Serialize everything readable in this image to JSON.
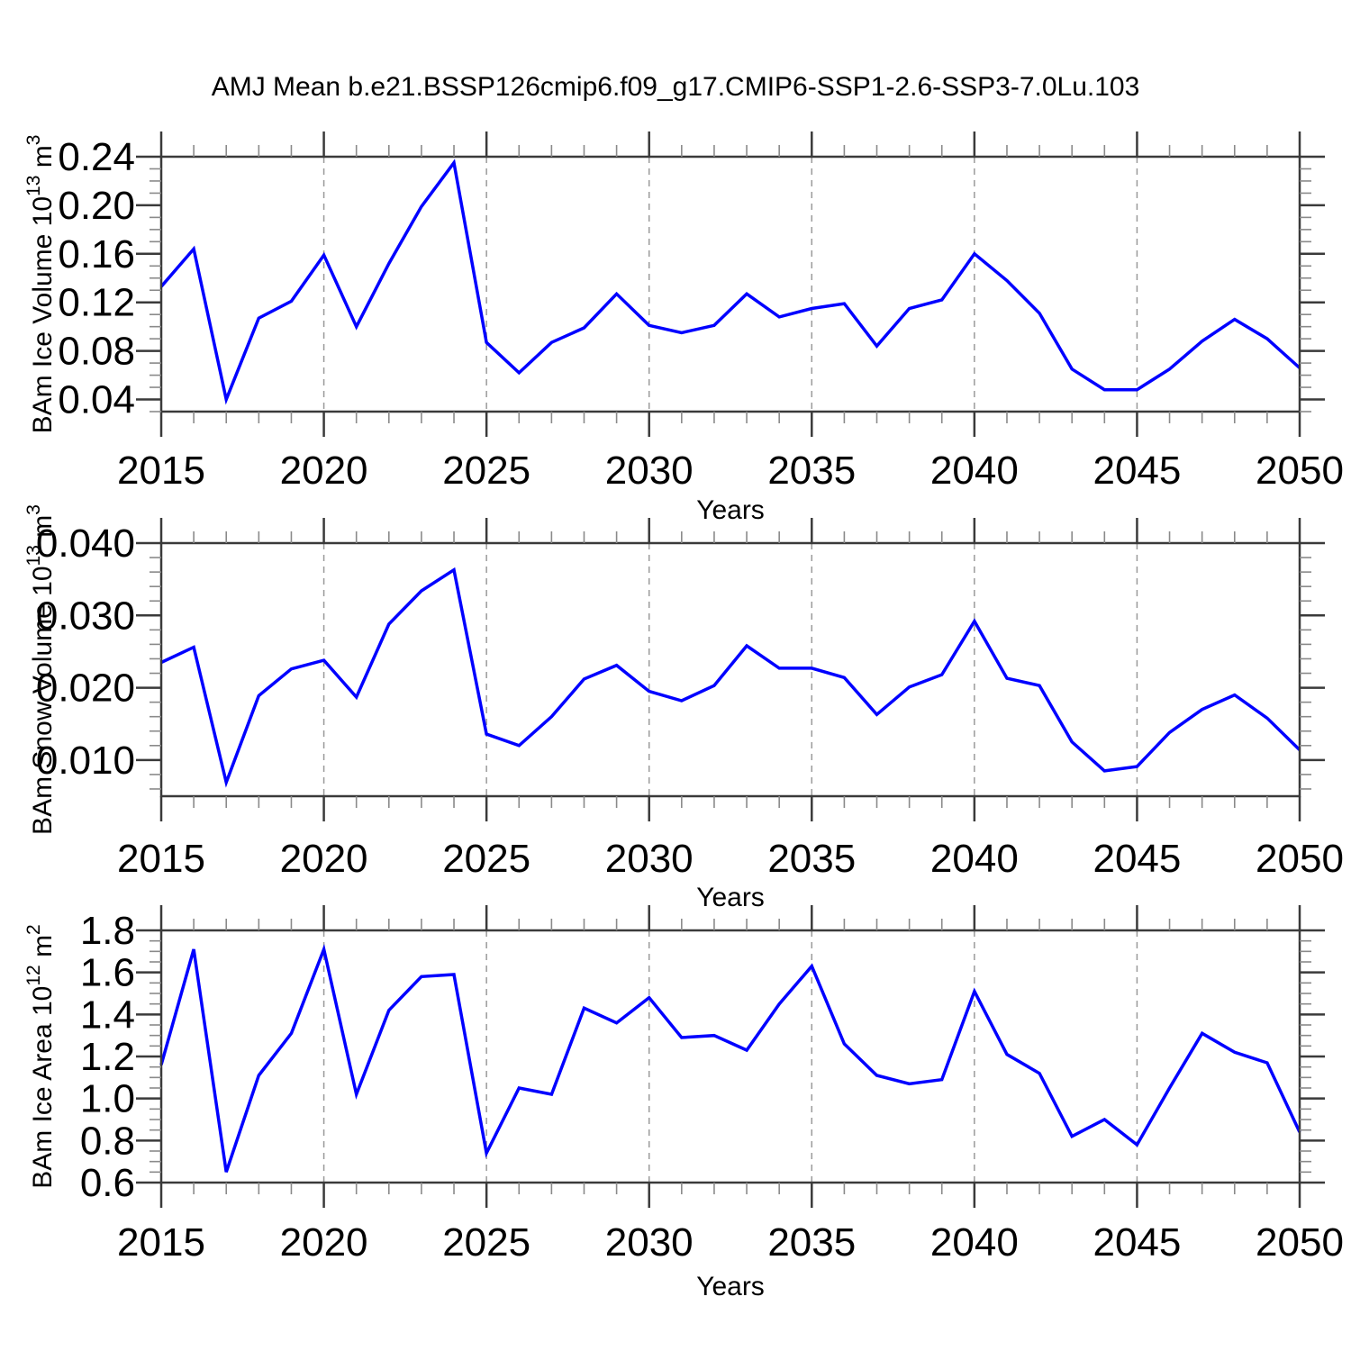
{
  "title": "AMJ Mean b.e21.BSSP126cmip6.f09_g17.CMIP6-SSP1-2.6-SSP3-7.0Lu.103",
  "xlabel": "Years",
  "style": {
    "line_color": "#0000ff",
    "grid_color": "#9a9a9a",
    "frame_color": "#3a3a3a",
    "minor_tick_color": "#8a8a8a",
    "text_color": "#000000",
    "background": "#ffffff"
  },
  "years": [
    2015,
    2016,
    2017,
    2018,
    2019,
    2020,
    2021,
    2022,
    2023,
    2024,
    2025,
    2026,
    2027,
    2028,
    2029,
    2030,
    2031,
    2032,
    2033,
    2034,
    2035,
    2036,
    2037,
    2038,
    2039,
    2040,
    2041,
    2042,
    2043,
    2044,
    2045,
    2046,
    2047,
    2048,
    2049,
    2050
  ],
  "x_tick_labels": [
    "2015",
    "2020",
    "2025",
    "2030",
    "2035",
    "2040",
    "2045",
    "2050"
  ],
  "chart_data": [
    {
      "type": "line",
      "id": "ice-volume",
      "ylabel": "BAm Ice Volume 10^13 m^3",
      "ylabel_parts": [
        [
          "t",
          "BAm Ice Volume 10"
        ],
        [
          "s",
          "13"
        ],
        [
          "t",
          " m"
        ],
        [
          "s",
          "3"
        ]
      ],
      "xlabel": "Years",
      "x_start": 2015,
      "x_end": 2050,
      "ylim": [
        0.03,
        0.24
      ],
      "yticks_major": [
        0.04,
        0.08,
        0.12,
        0.16,
        0.2,
        0.24
      ],
      "ytick_labels": [
        "0.04",
        "0.08",
        "0.12",
        "0.16",
        "0.20",
        "0.24"
      ],
      "y_minor_step": 0.01,
      "x_major_step": 5,
      "x_minor_step": 1,
      "grid_x": [
        2020,
        2025,
        2030,
        2035,
        2040,
        2045
      ],
      "values": [
        0.133,
        0.164,
        0.04,
        0.107,
        0.121,
        0.159,
        0.1,
        0.152,
        0.199,
        0.235,
        0.087,
        0.062,
        0.087,
        0.099,
        0.127,
        0.101,
        0.095,
        0.101,
        0.127,
        0.108,
        0.115,
        0.119,
        0.084,
        0.115,
        0.122,
        0.16,
        0.138,
        0.111,
        0.065,
        0.048,
        0.048,
        0.065,
        0.088,
        0.106,
        0.09,
        0.066
      ]
    },
    {
      "type": "line",
      "id": "snow-volume",
      "ylabel": "BAm Snow Volume 10^13 m^3",
      "ylabel_parts": [
        [
          "t",
          "BAm Snow Volume 10"
        ],
        [
          "s",
          "13"
        ],
        [
          "t",
          " m"
        ],
        [
          "s",
          "3"
        ]
      ],
      "xlabel": "Years",
      "x_start": 2015,
      "x_end": 2050,
      "ylim": [
        0.005,
        0.04
      ],
      "yticks_major": [
        0.01,
        0.02,
        0.03,
        0.04
      ],
      "ytick_labels": [
        "0.010",
        "0.020",
        "0.030",
        "0.040"
      ],
      "y_minor_step": 0.002,
      "x_major_step": 5,
      "x_minor_step": 1,
      "grid_x": [
        2020,
        2025,
        2030,
        2035,
        2040,
        2045
      ],
      "values": [
        0.0235,
        0.0256,
        0.0069,
        0.0189,
        0.0226,
        0.0238,
        0.0187,
        0.0288,
        0.0334,
        0.0363,
        0.0136,
        0.012,
        0.016,
        0.0212,
        0.0231,
        0.0195,
        0.0182,
        0.0203,
        0.0258,
        0.0227,
        0.0227,
        0.0214,
        0.0163,
        0.0201,
        0.0218,
        0.0292,
        0.0213,
        0.0203,
        0.0125,
        0.0085,
        0.0091,
        0.0138,
        0.017,
        0.019,
        0.0158,
        0.0114
      ]
    },
    {
      "type": "line",
      "id": "ice-area",
      "ylabel": "BAm Ice Area 10^12 m^2",
      "ylabel_parts": [
        [
          "t",
          "BAm Ice Area 10"
        ],
        [
          "s",
          "12"
        ],
        [
          "t",
          " m"
        ],
        [
          "s",
          "2"
        ]
      ],
      "xlabel": "Years",
      "x_start": 2015,
      "x_end": 2050,
      "ylim": [
        0.6,
        1.8
      ],
      "yticks_major": [
        0.6,
        0.8,
        1.0,
        1.2,
        1.4,
        1.6,
        1.8
      ],
      "ytick_labels": [
        "0.6",
        "0.8",
        "1.0",
        "1.2",
        "1.4",
        "1.6",
        "1.8"
      ],
      "y_minor_step": 0.05,
      "x_major_step": 5,
      "x_minor_step": 1,
      "grid_x": [
        2020,
        2025,
        2030,
        2035,
        2040,
        2045
      ],
      "values": [
        1.16,
        1.71,
        0.65,
        1.11,
        1.31,
        1.71,
        1.02,
        1.42,
        1.58,
        1.59,
        0.74,
        1.05,
        1.02,
        1.43,
        1.36,
        1.48,
        1.29,
        1.3,
        1.23,
        1.45,
        1.63,
        1.26,
        1.11,
        1.07,
        1.09,
        1.51,
        1.21,
        1.12,
        0.82,
        0.9,
        0.78,
        1.05,
        1.31,
        1.22,
        1.17,
        0.84
      ]
    }
  ]
}
